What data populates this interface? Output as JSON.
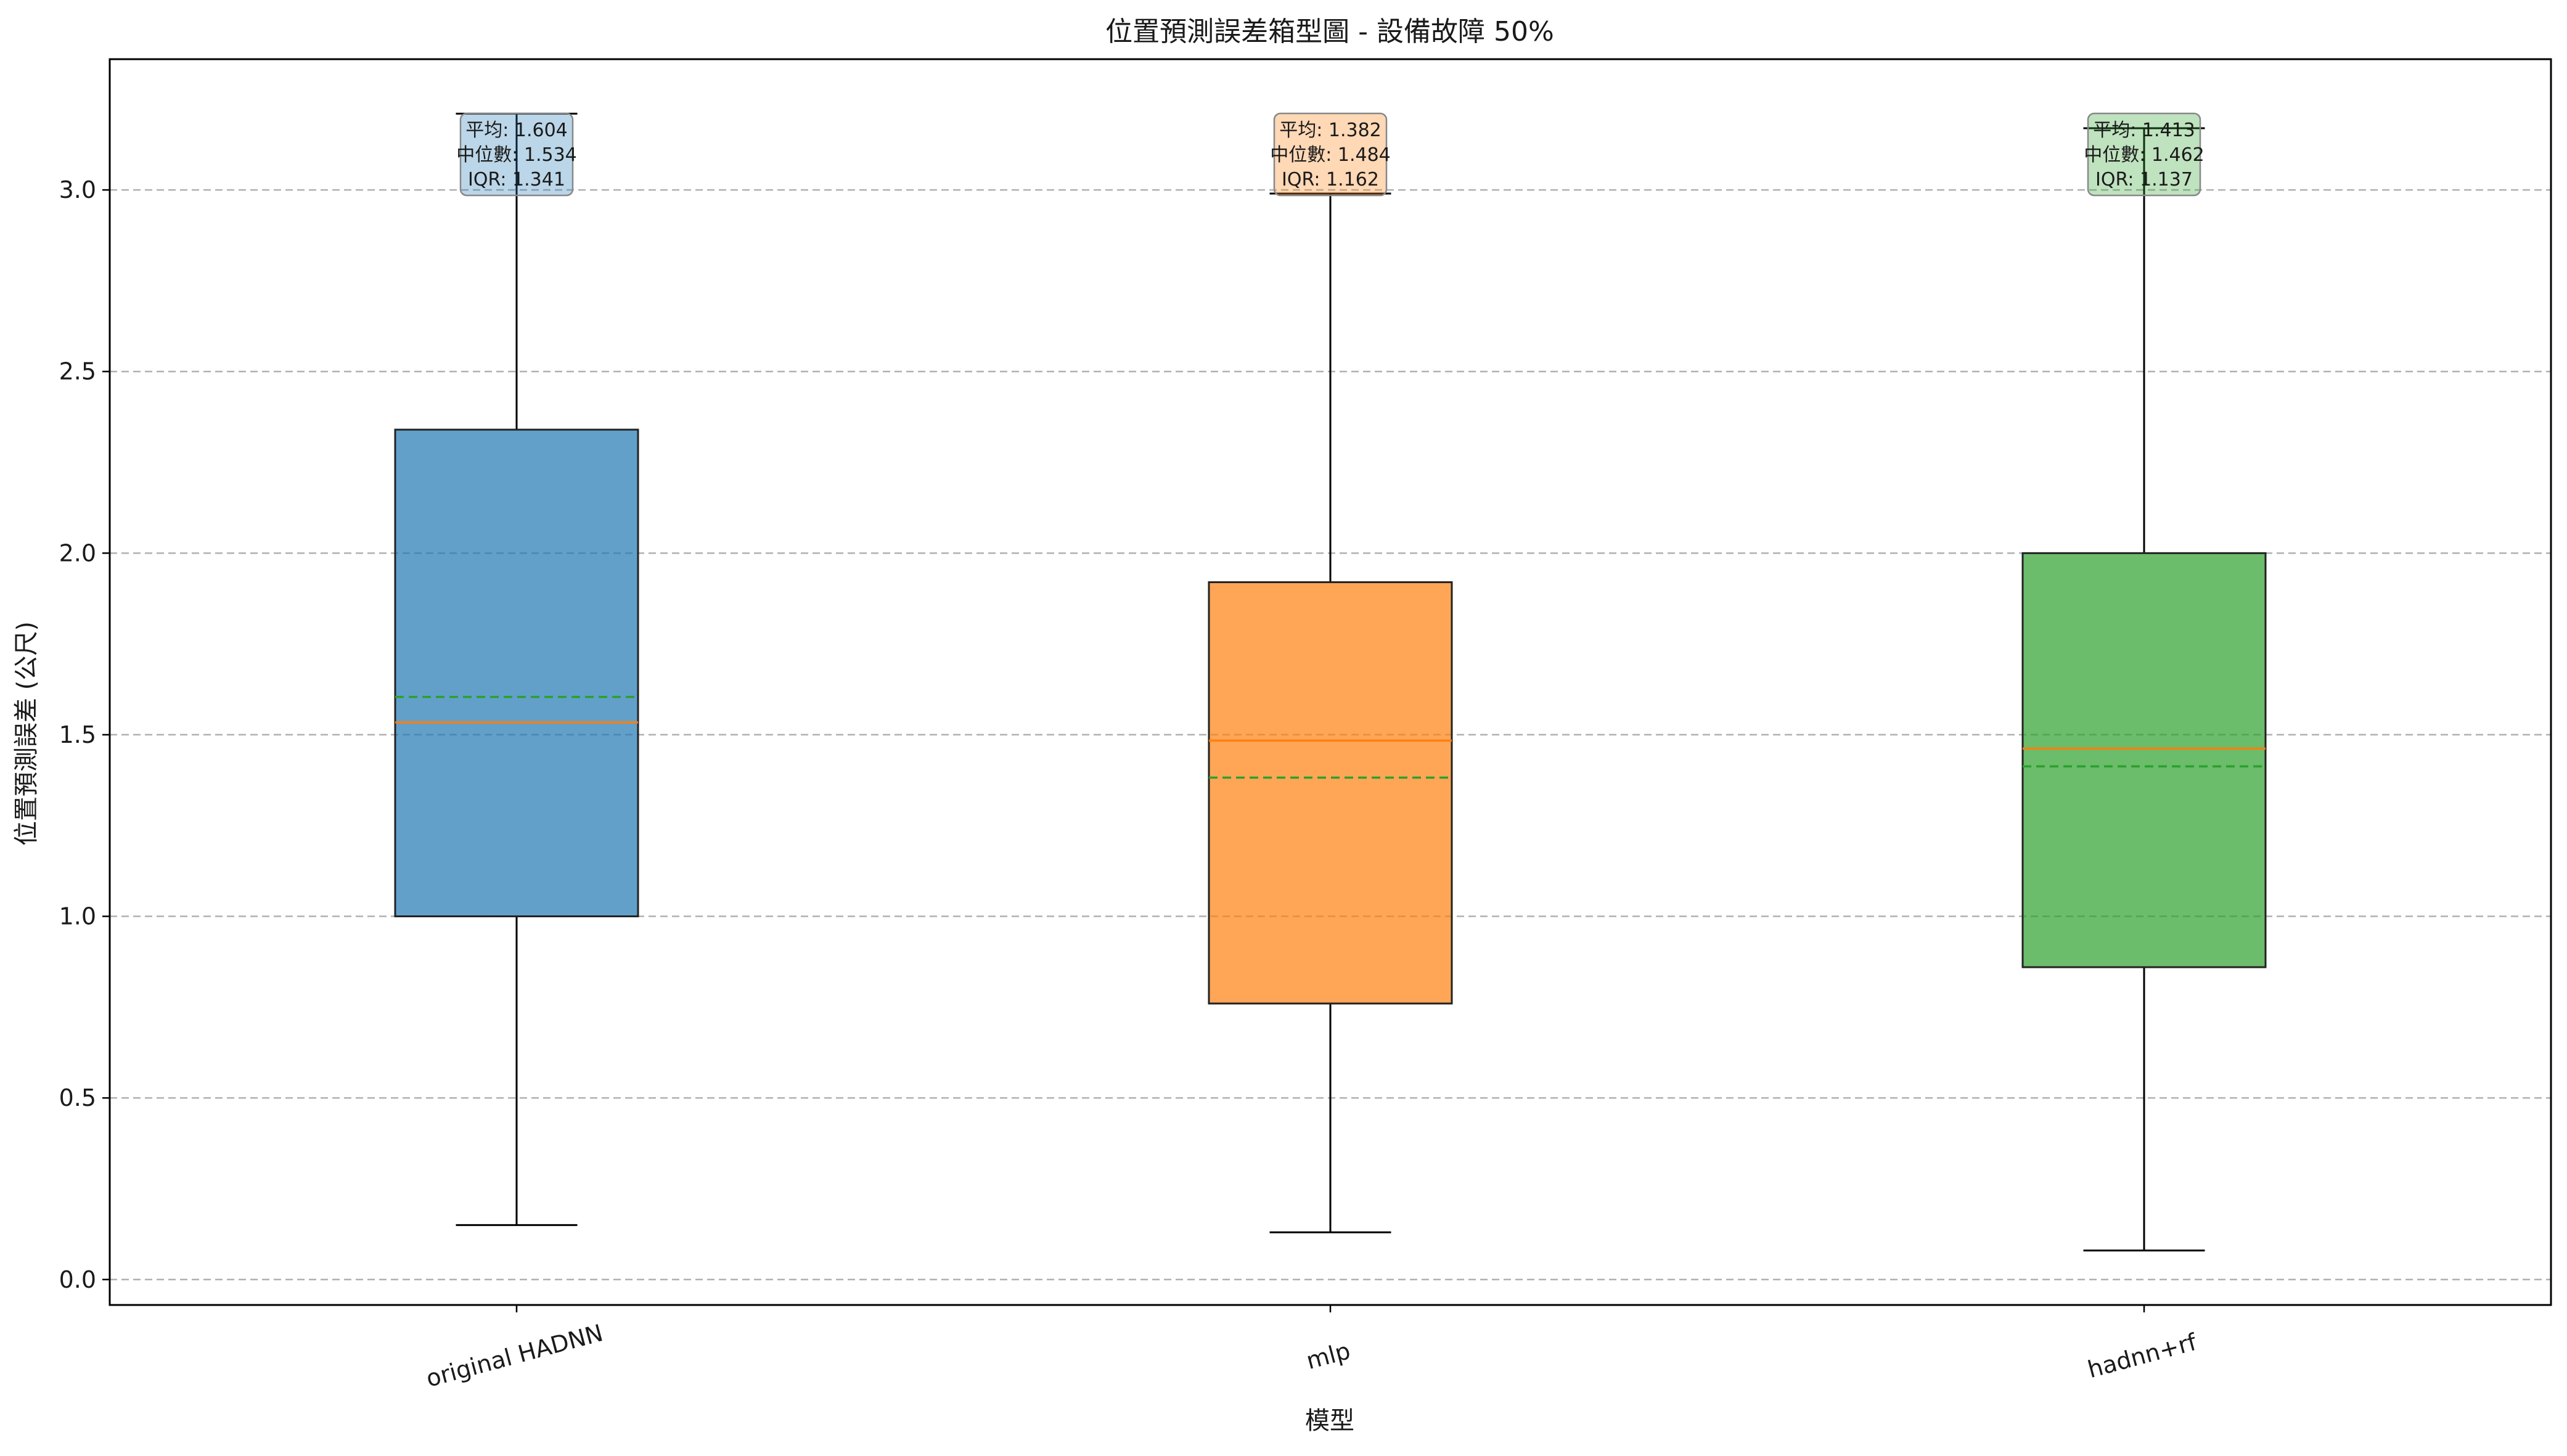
{
  "chart_data": {
    "type": "box",
    "title": "位置預測誤差箱型圖 - 設備故障 50%",
    "xlabel": "模型",
    "ylabel": "位置預測誤差 (公尺)",
    "ylim": [
      -0.07,
      3.36
    ],
    "yticks": [
      "0.0",
      "0.5",
      "1.0",
      "1.5",
      "2.0",
      "2.5",
      "3.0"
    ],
    "grid": "y-dashed",
    "categories": [
      "original HADNN",
      "mlp",
      "hadnn+rf"
    ],
    "series": [
      {
        "category": "original HADNN",
        "color": "#1f77b4",
        "whisker_low": 0.15,
        "q1": 1.0,
        "median": 1.534,
        "mean": 1.604,
        "q3": 2.34,
        "whisker_high": 3.21,
        "stats": [
          "平均: 1.604",
          "中位數: 1.534",
          "IQR: 1.341"
        ]
      },
      {
        "category": "mlp",
        "color": "#ff7f0e",
        "whisker_low": 0.13,
        "q1": 0.76,
        "median": 1.484,
        "mean": 1.382,
        "q3": 1.92,
        "whisker_high": 2.99,
        "stats": [
          "平均: 1.382",
          "中位數: 1.484",
          "IQR: 1.162"
        ]
      },
      {
        "category": "hadnn+rf",
        "color": "#2ca02c",
        "whisker_low": 0.08,
        "q1": 0.86,
        "median": 1.462,
        "mean": 1.413,
        "q3": 2.0,
        "whisker_high": 3.17,
        "stats": [
          "平均: 1.413",
          "中位數: 1.462",
          "IQR: 1.137"
        ]
      }
    ],
    "median_line_color": "#ff7f0e",
    "mean_line_color": "#2ca02c"
  }
}
